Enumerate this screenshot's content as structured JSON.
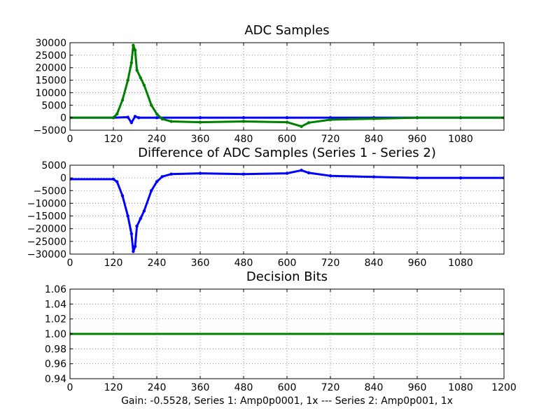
{
  "footer": "Gain: -0.5528, Series 1: Amp0p0001, 1x --- Series 2: Amp0p001, 1x",
  "colors": {
    "series1": "#0000ff",
    "series2": "#008000"
  },
  "chart_data": [
    {
      "type": "line",
      "title": "ADC Samples",
      "xlabel": "",
      "ylabel": "",
      "xlim": [
        0,
        1200
      ],
      "ylim": [
        -5000,
        30000
      ],
      "xticks": [
        0,
        120,
        240,
        360,
        480,
        600,
        720,
        840,
        960,
        1080
      ],
      "yticks": [
        -5000,
        0,
        5000,
        10000,
        15000,
        20000,
        25000,
        30000
      ],
      "grid": true,
      "series": [
        {
          "name": "Series 1",
          "color": "#0000ff",
          "x": [
            0,
            120,
            160,
            170,
            180,
            190,
            240,
            360,
            480,
            600,
            720,
            840,
            960,
            1080,
            1200
          ],
          "y": [
            0,
            0,
            200,
            -2000,
            500,
            0,
            0,
            0,
            0,
            0,
            0,
            0,
            0,
            0,
            0
          ]
        },
        {
          "name": "Series 2",
          "color": "#008000",
          "x": [
            0,
            120,
            130,
            145,
            160,
            170,
            175,
            180,
            185,
            195,
            205,
            225,
            240,
            255,
            280,
            360,
            480,
            600,
            640,
            660,
            720,
            840,
            960,
            1080,
            1200
          ],
          "y": [
            0,
            0,
            1500,
            7000,
            15000,
            22000,
            29000,
            27000,
            19000,
            16000,
            13000,
            5000,
            1500,
            -500,
            -1500,
            -1800,
            -1500,
            -1800,
            -3500,
            -2000,
            -800,
            -400,
            0,
            0,
            0
          ]
        }
      ]
    },
    {
      "type": "line",
      "title": "Difference of ADC Samples (Series 1 - Series 2)",
      "xlabel": "",
      "ylabel": "",
      "xlim": [
        0,
        1200
      ],
      "ylim": [
        -30000,
        5000
      ],
      "xticks": [
        0,
        120,
        240,
        360,
        480,
        600,
        720,
        840,
        960,
        1080
      ],
      "yticks": [
        -30000,
        -25000,
        -20000,
        -15000,
        -10000,
        -5000,
        0,
        5000
      ],
      "grid": true,
      "series": [
        {
          "name": "Series 1 - Series 2",
          "color": "#0000ff",
          "x": [
            0,
            120,
            130,
            145,
            160,
            170,
            175,
            180,
            185,
            195,
            205,
            225,
            240,
            255,
            280,
            360,
            480,
            600,
            640,
            660,
            720,
            840,
            960,
            1080,
            1200
          ],
          "y": [
            -500,
            -500,
            -1500,
            -7000,
            -15000,
            -22000,
            -29000,
            -27000,
            -19000,
            -16000,
            -13000,
            -5000,
            -1500,
            500,
            1500,
            1800,
            1500,
            1800,
            3000,
            2000,
            800,
            400,
            0,
            0,
            0
          ]
        }
      ]
    },
    {
      "type": "line",
      "title": "Decision Bits",
      "xlabel": "",
      "ylabel": "",
      "xlim": [
        0,
        1200
      ],
      "ylim": [
        0.94,
        1.06
      ],
      "xticks": [
        0,
        120,
        240,
        360,
        480,
        600,
        720,
        840,
        960,
        1080,
        1200
      ],
      "yticks": [
        0.94,
        0.96,
        0.98,
        1.0,
        1.02,
        1.04,
        1.06
      ],
      "ytick_labels": [
        "0.94",
        "0.96",
        "0.98",
        "1.00",
        "1.02",
        "1.04",
        "1.06"
      ],
      "grid": true,
      "series": [
        {
          "name": "Decision",
          "color": "#008000",
          "x": [
            0,
            1200
          ],
          "y": [
            1.0,
            1.0
          ]
        }
      ]
    }
  ]
}
